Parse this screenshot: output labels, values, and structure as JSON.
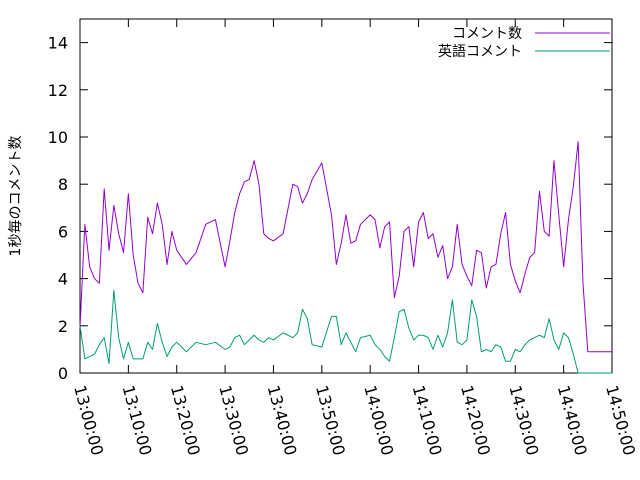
{
  "chart_data": {
    "type": "line",
    "title": "",
    "xlabel": "",
    "ylabel": "1秒毎のコメント数",
    "xlim": [
      "13:00:00",
      "14:50:00"
    ],
    "ylim": [
      0,
      15
    ],
    "yticks": [
      0,
      2,
      4,
      6,
      8,
      10,
      12,
      14
    ],
    "xticks": [
      "13:00:00",
      "13:10:00",
      "13:20:00",
      "13:30:00",
      "13:40:00",
      "13:50:00",
      "14:00:00",
      "14:10:00",
      "14:20:00",
      "14:30:00",
      "14:40:00",
      "14:50:00"
    ],
    "grid": false,
    "legend_position": "top-right",
    "series": [
      {
        "name": "コメント数",
        "color": "#9400d3",
        "x": [
          "13:00:00",
          "13:01:00",
          "13:02:00",
          "13:03:00",
          "13:04:00",
          "13:05:00",
          "13:06:00",
          "13:07:00",
          "13:08:00",
          "13:09:00",
          "13:10:00",
          "13:11:00",
          "13:12:00",
          "13:13:00",
          "13:14:00",
          "13:15:00",
          "13:16:00",
          "13:17:00",
          "13:18:00",
          "13:19:00",
          "13:20:00",
          "13:22:00",
          "13:24:00",
          "13:26:00",
          "13:28:00",
          "13:30:00",
          "13:31:00",
          "13:32:00",
          "13:33:00",
          "13:34:00",
          "13:35:00",
          "13:36:00",
          "13:37:00",
          "13:38:00",
          "13:39:00",
          "13:40:00",
          "13:42:00",
          "13:44:00",
          "13:45:00",
          "13:46:00",
          "13:47:00",
          "13:48:00",
          "13:50:00",
          "13:52:00",
          "13:53:00",
          "13:54:00",
          "13:55:00",
          "13:56:00",
          "13:57:00",
          "13:58:00",
          "14:00:00",
          "14:01:00",
          "14:02:00",
          "14:03:00",
          "14:04:00",
          "14:05:00",
          "14:06:00",
          "14:07:00",
          "14:08:00",
          "14:09:00",
          "14:10:00",
          "14:11:00",
          "14:12:00",
          "14:13:00",
          "14:14:00",
          "14:15:00",
          "14:16:00",
          "14:17:00",
          "14:18:00",
          "14:19:00",
          "14:20:00",
          "14:21:00",
          "14:22:00",
          "14:23:00",
          "14:24:00",
          "14:25:00",
          "14:26:00",
          "14:27:00",
          "14:28:00",
          "14:29:00",
          "14:30:00",
          "14:31:00",
          "14:32:00",
          "14:33:00",
          "14:34:00",
          "14:35:00",
          "14:36:00",
          "14:37:00",
          "14:38:00",
          "14:39:00",
          "14:40:00",
          "14:41:00",
          "14:42:00",
          "14:43:00",
          "14:44:00",
          "14:45:00",
          "14:46:00",
          "14:47:00",
          "14:48:00",
          "14:49:00",
          "14:50:00"
        ],
        "values": [
          1.9,
          6.3,
          4.5,
          4.0,
          3.8,
          7.8,
          5.2,
          7.1,
          5.9,
          5.1,
          7.6,
          5.0,
          3.8,
          3.4,
          6.6,
          5.9,
          7.2,
          6.3,
          4.6,
          6.0,
          5.2,
          4.6,
          5.1,
          6.3,
          6.5,
          4.5,
          5.6,
          6.8,
          7.6,
          8.1,
          8.2,
          9.0,
          8.0,
          5.9,
          5.7,
          5.6,
          5.9,
          8.0,
          7.9,
          7.2,
          7.6,
          8.2,
          8.9,
          6.7,
          4.6,
          5.5,
          6.7,
          5.5,
          5.6,
          6.3,
          6.7,
          6.5,
          5.3,
          6.2,
          6.4,
          3.2,
          4.1,
          6.0,
          6.2,
          4.5,
          6.4,
          6.8,
          5.7,
          5.9,
          4.9,
          5.4,
          4.0,
          4.5,
          6.3,
          4.6,
          4.1,
          3.7,
          5.2,
          5.1,
          3.6,
          4.5,
          4.6,
          5.9,
          6.8,
          4.6,
          3.9,
          3.4,
          4.2,
          4.9,
          5.1,
          7.7,
          6.0,
          5.8,
          9.0,
          6.7,
          4.5,
          6.5,
          7.9,
          9.8,
          3.8,
          0.9,
          0.9,
          0.9,
          0.9,
          0.9,
          0.9
        ]
      },
      {
        "name": "英語コメント",
        "color": "#009e73",
        "x": [
          "13:00:00",
          "13:01:00",
          "13:02:00",
          "13:03:00",
          "13:04:00",
          "13:05:00",
          "13:06:00",
          "13:07:00",
          "13:08:00",
          "13:09:00",
          "13:10:00",
          "13:11:00",
          "13:12:00",
          "13:13:00",
          "13:14:00",
          "13:15:00",
          "13:16:00",
          "13:17:00",
          "13:18:00",
          "13:19:00",
          "13:20:00",
          "13:22:00",
          "13:24:00",
          "13:26:00",
          "13:28:00",
          "13:30:00",
          "13:31:00",
          "13:32:00",
          "13:33:00",
          "13:34:00",
          "13:35:00",
          "13:36:00",
          "13:37:00",
          "13:38:00",
          "13:39:00",
          "13:40:00",
          "13:42:00",
          "13:44:00",
          "13:45:00",
          "13:46:00",
          "13:47:00",
          "13:48:00",
          "13:50:00",
          "13:52:00",
          "13:53:00",
          "13:54:00",
          "13:55:00",
          "13:56:00",
          "13:57:00",
          "13:58:00",
          "14:00:00",
          "14:01:00",
          "14:02:00",
          "14:03:00",
          "14:04:00",
          "14:05:00",
          "14:06:00",
          "14:07:00",
          "14:08:00",
          "14:09:00",
          "14:10:00",
          "14:11:00",
          "14:12:00",
          "14:13:00",
          "14:14:00",
          "14:15:00",
          "14:16:00",
          "14:17:00",
          "14:18:00",
          "14:19:00",
          "14:20:00",
          "14:21:00",
          "14:22:00",
          "14:23:00",
          "14:24:00",
          "14:25:00",
          "14:26:00",
          "14:27:00",
          "14:28:00",
          "14:29:00",
          "14:30:00",
          "14:31:00",
          "14:32:00",
          "14:33:00",
          "14:34:00",
          "14:35:00",
          "14:36:00",
          "14:37:00",
          "14:38:00",
          "14:39:00",
          "14:40:00",
          "14:41:00",
          "14:42:00",
          "14:43:00",
          "14:44:00",
          "14:45:00",
          "14:46:00",
          "14:47:00",
          "14:48:00",
          "14:49:00",
          "14:50:00"
        ],
        "values": [
          2.0,
          0.6,
          0.7,
          0.8,
          1.2,
          1.5,
          0.4,
          3.5,
          1.5,
          0.6,
          1.3,
          0.6,
          0.6,
          0.6,
          1.3,
          1.0,
          2.1,
          1.3,
          0.7,
          1.1,
          1.3,
          0.9,
          1.3,
          1.2,
          1.3,
          1.0,
          1.1,
          1.5,
          1.6,
          1.2,
          1.4,
          1.6,
          1.4,
          1.3,
          1.5,
          1.4,
          1.7,
          1.5,
          1.7,
          2.7,
          2.3,
          1.2,
          1.1,
          2.4,
          2.4,
          1.2,
          1.7,
          1.3,
          0.9,
          1.5,
          1.6,
          1.2,
          1.0,
          0.7,
          0.5,
          1.5,
          2.6,
          2.7,
          1.9,
          1.4,
          1.6,
          1.6,
          1.5,
          1.0,
          1.6,
          1.1,
          1.7,
          3.1,
          1.3,
          1.2,
          1.4,
          3.1,
          2.4,
          0.9,
          1.0,
          0.9,
          1.2,
          1.1,
          0.5,
          0.5,
          1.0,
          0.9,
          1.2,
          1.4,
          1.5,
          1.6,
          1.5,
          2.3,
          1.4,
          1.0,
          1.7,
          1.5,
          0.8,
          0.0,
          0.0,
          0.0,
          0.0,
          0.0,
          0.0,
          0.0,
          0.0
        ]
      }
    ]
  }
}
